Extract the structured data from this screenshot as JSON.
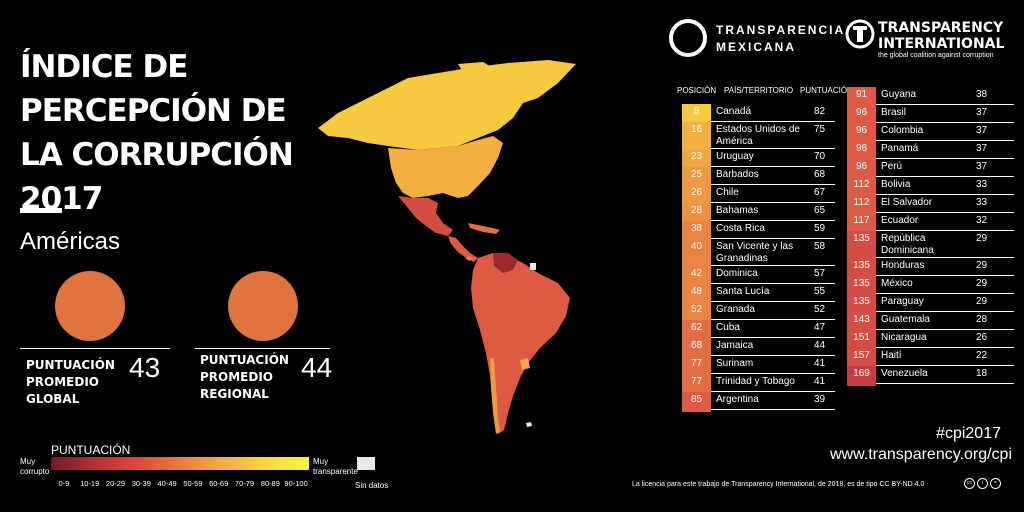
{
  "title": "ÍNDICE DE PERCEPCIÓN DE LA CORRUPCIÓN 2017",
  "region": "Américas",
  "global_score": {
    "label": "PUNTUACIÓN PROMEDIO GLOBAL",
    "value": "43"
  },
  "regional_score": {
    "label": "PUNTUACIÓN PROMEDIO REGIONAL",
    "value": "44"
  },
  "legend": {
    "title": "PUNTUACIÓN",
    "left": "Muy corrupto",
    "right": "Muy transparente",
    "no_data": "Sin datos",
    "ranges": [
      "0-9",
      "10-19",
      "20-29",
      "30-39",
      "40-49",
      "50-59",
      "60-69",
      "70-79",
      "80-89",
      "90-100"
    ]
  },
  "logos": {
    "tm": "TRANSPARENCIA MEXICANA",
    "ti": "TRANSPARENCY INTERNATIONAL",
    "ti_tagline": "the global coalition against corruption"
  },
  "table_headers": {
    "position": "POSICIÓN",
    "country": "PAÍS/TERRITORIO",
    "score": "PUNTUACIÓN"
  },
  "table_left": [
    {
      "rank": "8",
      "country": "Canadá",
      "score": "82",
      "color": "#f6c93f"
    },
    {
      "rank": "16",
      "country": "Estados Unidos de América",
      "score": "75",
      "color": "#f3b040"
    },
    {
      "rank": "23",
      "country": "Uruguay",
      "score": "70",
      "color": "#f1a741"
    },
    {
      "rank": "25",
      "country": "Barbados",
      "score": "68",
      "color": "#ee9a42"
    },
    {
      "rank": "26",
      "country": "Chile",
      "score": "67",
      "color": "#ee9a42"
    },
    {
      "rank": "28",
      "country": "Bahamas",
      "score": "65",
      "color": "#ec9343"
    },
    {
      "rank": "38",
      "country": "Costa Rica",
      "score": "59",
      "color": "#e98443"
    },
    {
      "rank": "40",
      "country": "San Vicente y las Granadinas",
      "score": "58",
      "color": "#e98443"
    },
    {
      "rank": "42",
      "country": "Dominica",
      "score": "57",
      "color": "#e98443"
    },
    {
      "rank": "48",
      "country": "Santa Lucía",
      "score": "55",
      "color": "#e98443"
    },
    {
      "rank": "52",
      "country": "Granada",
      "score": "52",
      "color": "#e98443"
    },
    {
      "rank": "62",
      "country": "Cuba",
      "score": "47",
      "color": "#e36d44"
    },
    {
      "rank": "68",
      "country": "Jamaica",
      "score": "44",
      "color": "#e36d44"
    },
    {
      "rank": "77",
      "country": "Surinam",
      "score": "41",
      "color": "#e36d44"
    },
    {
      "rank": "77",
      "country": "Trinidad y Tobago",
      "score": "41",
      "color": "#e36d44"
    },
    {
      "rank": "85",
      "country": "Argentina",
      "score": "39",
      "color": "#dd5a44"
    }
  ],
  "table_right": [
    {
      "rank": "91",
      "country": "Guyana",
      "score": "38",
      "color": "#dd5a44"
    },
    {
      "rank": "96",
      "country": "Brasil",
      "score": "37",
      "color": "#dd5a44"
    },
    {
      "rank": "96",
      "country": "Colombia",
      "score": "37",
      "color": "#dd5a44"
    },
    {
      "rank": "96",
      "country": "Panamá",
      "score": "37",
      "color": "#dd5a44"
    },
    {
      "rank": "96",
      "country": "Perú",
      "score": "37",
      "color": "#dd5a44"
    },
    {
      "rank": "112",
      "country": "Bolivia",
      "score": "33",
      "color": "#dd5a44"
    },
    {
      "rank": "112",
      "country": "El Salvador",
      "score": "33",
      "color": "#dd5a44"
    },
    {
      "rank": "117",
      "country": "Ecuador",
      "score": "32",
      "color": "#dd5a44"
    },
    {
      "rank": "135",
      "country": "República Dominicana",
      "score": "29",
      "color": "#d44d45"
    },
    {
      "rank": "135",
      "country": "Honduras",
      "score": "29",
      "color": "#d44d45"
    },
    {
      "rank": "135",
      "country": "México",
      "score": "29",
      "color": "#d44d45"
    },
    {
      "rank": "135",
      "country": "Paraguay",
      "score": "29",
      "color": "#d44d45"
    },
    {
      "rank": "143",
      "country": "Guatemala",
      "score": "28",
      "color": "#d44d45"
    },
    {
      "rank": "151",
      "country": "Nicaragua",
      "score": "26",
      "color": "#d44d45"
    },
    {
      "rank": "157",
      "country": "Haití",
      "score": "22",
      "color": "#d44d45"
    },
    {
      "rank": "169",
      "country": "Venezuela",
      "score": "18",
      "color": "#c43d42"
    }
  ],
  "footer": {
    "hashtag": "#cpi2017",
    "url": "www.transparency.org/cpi",
    "license": "La licencia para este trabajo de Transparency International, de 2018, es de tipo CC BY-ND 4.0"
  },
  "colors": {
    "background": "#000000",
    "average_circle": "#e0743f"
  }
}
